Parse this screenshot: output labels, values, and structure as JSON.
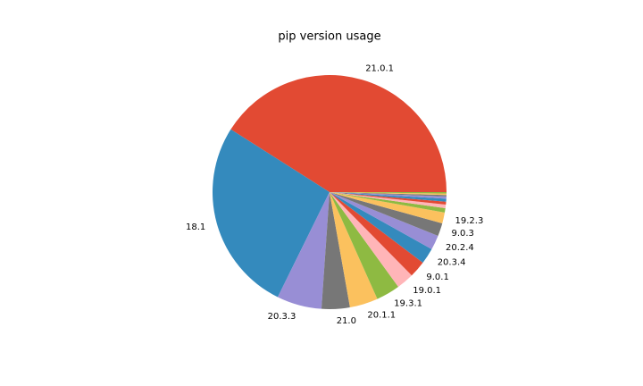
{
  "chart_data": {
    "type": "pie",
    "title": "pip version usage",
    "categories": [
      "21.0.1",
      "18.1",
      "20.3.3",
      "21.0",
      "20.1.1",
      "19.3.1",
      "19.0.1",
      "9.0.1",
      "20.3.4",
      "20.2.4",
      "9.0.3",
      "19.2.3",
      null,
      null,
      null,
      null,
      null,
      null,
      null,
      null
    ],
    "values": [
      41.0,
      26.7,
      6.2,
      3.9,
      3.9,
      3.3,
      2.4,
      2.3,
      2.2,
      2.0,
      1.8,
      1.5,
      0.6,
      0.5,
      0.4,
      0.4,
      0.3,
      0.2,
      0.2,
      0.2
    ],
    "colors": [
      "#E24A33",
      "#348ABD",
      "#988ED5",
      "#777777",
      "#FBC15E",
      "#8EBA42",
      "#FFB5B8"
    ]
  }
}
